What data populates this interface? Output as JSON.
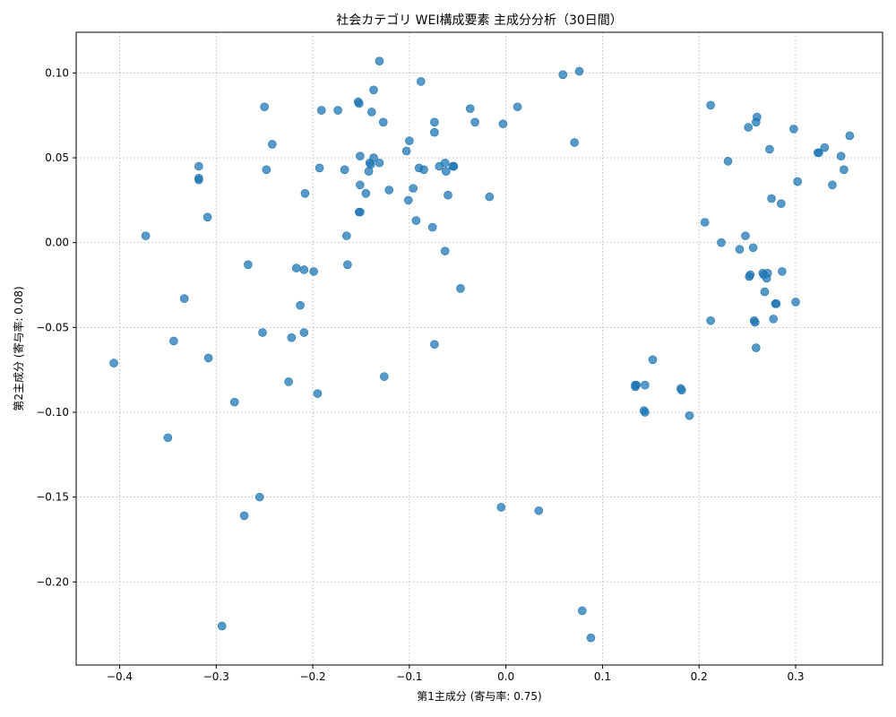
{
  "chart_data": {
    "type": "scatter",
    "title": "社会カテゴリ WEI構成要素 主成分分析（30日間）",
    "xlabel": "第1主成分 (寄与率: 0.75)",
    "ylabel": "第2主成分 (寄与率: 0.08)",
    "xlim": [
      -0.445,
      0.39
    ],
    "ylim": [
      -0.249,
      0.124
    ],
    "x_ticks": [
      -0.4,
      -0.3,
      -0.2,
      -0.1,
      0.0,
      0.1,
      0.2,
      0.3
    ],
    "x_tick_labels": [
      "−0.4",
      "−0.3",
      "−0.2",
      "−0.1",
      "0.0",
      "0.1",
      "0.2",
      "0.3"
    ],
    "y_ticks": [
      -0.2,
      -0.15,
      -0.1,
      -0.05,
      0.0,
      0.05,
      0.1
    ],
    "y_tick_labels": [
      "−0.20",
      "−0.15",
      "−0.10",
      "−0.05",
      "0.00",
      "0.05",
      "0.10"
    ],
    "grid": true,
    "marker_color": "#1f77b4",
    "points": [
      [
        -0.406,
        -0.071
      ],
      [
        -0.373,
        0.004
      ],
      [
        -0.35,
        -0.115
      ],
      [
        -0.344,
        -0.058
      ],
      [
        -0.333,
        -0.033
      ],
      [
        -0.318,
        0.045
      ],
      [
        -0.318,
        0.038
      ],
      [
        -0.318,
        0.037
      ],
      [
        -0.309,
        0.015
      ],
      [
        -0.308,
        -0.068
      ],
      [
        -0.294,
        -0.226
      ],
      [
        -0.281,
        -0.094
      ],
      [
        -0.271,
        -0.161
      ],
      [
        -0.267,
        -0.013
      ],
      [
        -0.255,
        -0.15
      ],
      [
        -0.252,
        -0.053
      ],
      [
        -0.25,
        0.08
      ],
      [
        -0.248,
        0.043
      ],
      [
        -0.242,
        0.058
      ],
      [
        -0.225,
        -0.082
      ],
      [
        -0.222,
        -0.056
      ],
      [
        -0.217,
        -0.015
      ],
      [
        -0.213,
        -0.037
      ],
      [
        -0.209,
        -0.016
      ],
      [
        -0.209,
        -0.053
      ],
      [
        -0.208,
        0.029
      ],
      [
        -0.199,
        -0.017
      ],
      [
        -0.195,
        -0.089
      ],
      [
        -0.193,
        0.044
      ],
      [
        -0.191,
        0.078
      ],
      [
        -0.174,
        0.078
      ],
      [
        -0.167,
        0.043
      ],
      [
        -0.165,
        0.004
      ],
      [
        -0.164,
        -0.013
      ],
      [
        -0.153,
        0.083
      ],
      [
        -0.152,
        0.082
      ],
      [
        -0.151,
        0.034
      ],
      [
        -0.151,
        0.051
      ],
      [
        -0.152,
        0.018
      ],
      [
        -0.151,
        0.018
      ],
      [
        -0.145,
        0.029
      ],
      [
        -0.142,
        0.042
      ],
      [
        -0.141,
        0.047
      ],
      [
        -0.14,
        0.046
      ],
      [
        -0.139,
        0.077
      ],
      [
        -0.137,
        0.09
      ],
      [
        -0.137,
        0.05
      ],
      [
        -0.131,
        0.107
      ],
      [
        -0.131,
        0.047
      ],
      [
        -0.127,
        0.071
      ],
      [
        -0.126,
        -0.079
      ],
      [
        -0.121,
        0.031
      ],
      [
        -0.103,
        0.054
      ],
      [
        -0.101,
        0.025
      ],
      [
        -0.1,
        0.06
      ],
      [
        -0.096,
        0.032
      ],
      [
        -0.093,
        0.013
      ],
      [
        -0.09,
        0.044
      ],
      [
        -0.088,
        0.095
      ],
      [
        -0.085,
        0.043
      ],
      [
        -0.076,
        0.009
      ],
      [
        -0.074,
        0.071
      ],
      [
        -0.074,
        0.065
      ],
      [
        -0.074,
        -0.06
      ],
      [
        -0.069,
        0.045
      ],
      [
        -0.063,
        0.047
      ],
      [
        -0.063,
        -0.005
      ],
      [
        -0.062,
        0.042
      ],
      [
        -0.06,
        0.028
      ],
      [
        -0.055,
        0.045
      ],
      [
        -0.054,
        0.045
      ],
      [
        -0.047,
        -0.027
      ],
      [
        -0.037,
        0.079
      ],
      [
        -0.032,
        0.071
      ],
      [
        -0.017,
        0.027
      ],
      [
        -0.005,
        -0.156
      ],
      [
        -0.003,
        0.07
      ],
      [
        0.012,
        0.08
      ],
      [
        0.034,
        -0.158
      ],
      [
        0.059,
        0.099
      ],
      [
        0.071,
        0.059
      ],
      [
        0.076,
        0.101
      ],
      [
        0.079,
        -0.217
      ],
      [
        0.088,
        -0.233
      ],
      [
        0.134,
        -0.084
      ],
      [
        0.134,
        -0.085
      ],
      [
        0.135,
        -0.084
      ],
      [
        0.143,
        -0.099
      ],
      [
        0.144,
        -0.1
      ],
      [
        0.144,
        -0.084
      ],
      [
        0.152,
        -0.069
      ],
      [
        0.181,
        -0.086
      ],
      [
        0.182,
        -0.087
      ],
      [
        0.19,
        -0.102
      ],
      [
        0.206,
        0.012
      ],
      [
        0.212,
        0.081
      ],
      [
        0.212,
        -0.046
      ],
      [
        0.223,
        0.0
      ],
      [
        0.23,
        0.048
      ],
      [
        0.242,
        -0.004
      ],
      [
        0.248,
        0.004
      ],
      [
        0.251,
        0.068
      ],
      [
        0.252,
        -0.02
      ],
      [
        0.253,
        -0.019
      ],
      [
        0.256,
        -0.003
      ],
      [
        0.257,
        -0.046
      ],
      [
        0.258,
        -0.047
      ],
      [
        0.259,
        0.071
      ],
      [
        0.259,
        -0.062
      ],
      [
        0.26,
        0.074
      ],
      [
        0.266,
        -0.018
      ],
      [
        0.267,
        -0.019
      ],
      [
        0.268,
        -0.029
      ],
      [
        0.27,
        -0.021
      ],
      [
        0.271,
        -0.018
      ],
      [
        0.273,
        0.055
      ],
      [
        0.275,
        0.026
      ],
      [
        0.277,
        -0.045
      ],
      [
        0.279,
        -0.036
      ],
      [
        0.28,
        -0.036
      ],
      [
        0.285,
        0.023
      ],
      [
        0.286,
        -0.017
      ],
      [
        0.298,
        0.067
      ],
      [
        0.3,
        -0.035
      ],
      [
        0.302,
        0.036
      ],
      [
        0.323,
        0.053
      ],
      [
        0.324,
        0.053
      ],
      [
        0.33,
        0.056
      ],
      [
        0.338,
        0.034
      ],
      [
        0.347,
        0.051
      ],
      [
        0.35,
        0.043
      ],
      [
        0.356,
        0.063
      ]
    ]
  }
}
